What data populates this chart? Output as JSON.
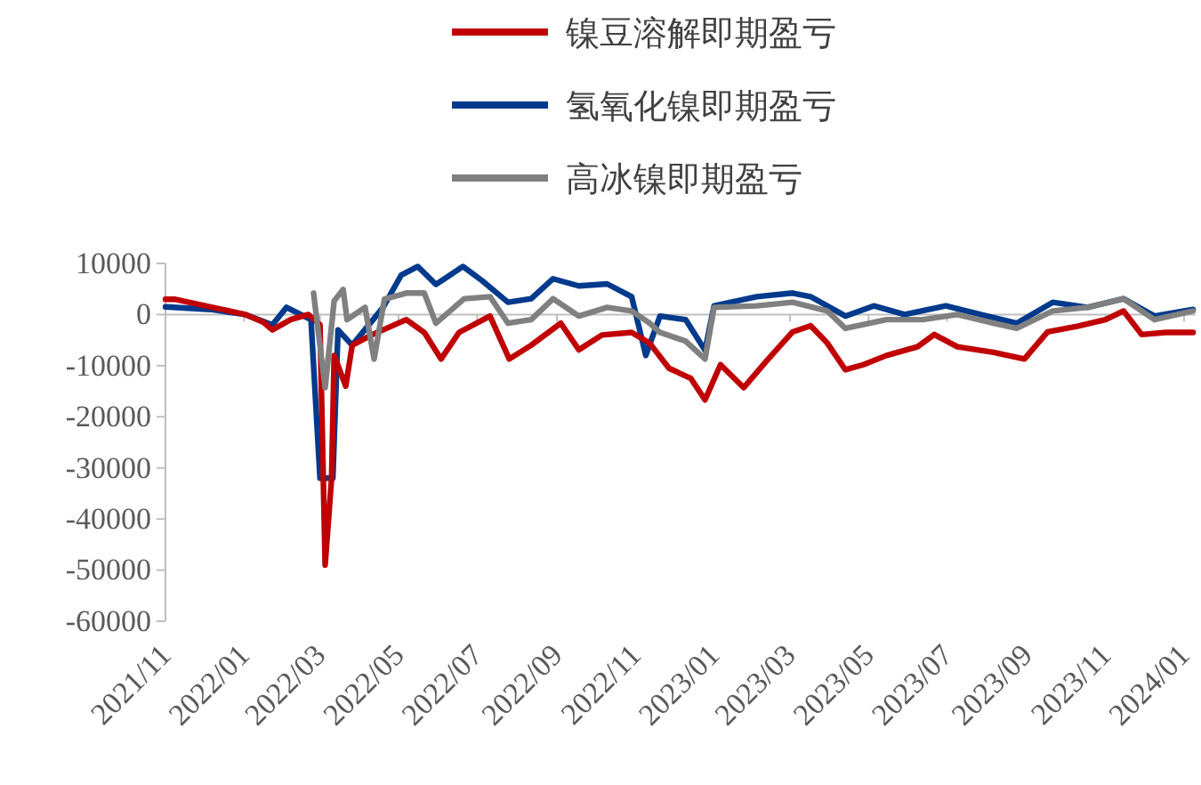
{
  "chart_data": {
    "type": "line",
    "legend": "top",
    "line_style": "solid",
    "marker": "none",
    "xlim": [
      "2021-11-01",
      "2024-01-10"
    ],
    "xticks": [
      {
        "value": "2021-11-01",
        "label": "2021/11"
      },
      {
        "value": "2022-01-01",
        "label": "2022/01"
      },
      {
        "value": "2022-03-01",
        "label": "2022/03"
      },
      {
        "value": "2022-05-01",
        "label": "2022/05"
      },
      {
        "value": "2022-07-01",
        "label": "2022/07"
      },
      {
        "value": "2022-09-01",
        "label": "2022/09"
      },
      {
        "value": "2022-11-01",
        "label": "2022/11"
      },
      {
        "value": "2023-01-01",
        "label": "2023/01"
      },
      {
        "value": "2023-03-01",
        "label": "2023/03"
      },
      {
        "value": "2023-05-01",
        "label": "2023/05"
      },
      {
        "value": "2023-07-01",
        "label": "2023/07"
      },
      {
        "value": "2023-09-01",
        "label": "2023/09"
      },
      {
        "value": "2023-11-01",
        "label": "2023/11"
      },
      {
        "value": "2024-01-01",
        "label": "2024/01"
      }
    ],
    "ylim": [
      -60000,
      10000
    ],
    "yticks": [
      -60000,
      -50000,
      -40000,
      -30000,
      -20000,
      -10000,
      0,
      10000
    ],
    "series": [
      {
        "name": "镍豆溶解即期盈亏",
        "color": "#c00000",
        "x": [
          "2021-11-01",
          "2021-11-08",
          "2021-12-06",
          "2022-01-02",
          "2022-01-16",
          "2022-01-23",
          "2022-02-06",
          "2022-02-20",
          "2022-03-01",
          "2022-03-05",
          "2022-03-10",
          "2022-03-12",
          "2022-03-21",
          "2022-03-26",
          "2022-04-10",
          "2022-05-07",
          "2022-05-21",
          "2022-06-03",
          "2022-06-17",
          "2022-07-11",
          "2022-07-26",
          "2022-08-12",
          "2022-09-04",
          "2022-09-18",
          "2022-10-06",
          "2022-10-29",
          "2022-11-12",
          "2022-11-27",
          "2022-12-14",
          "2022-12-25",
          "2023-01-06",
          "2023-01-24",
          "2023-02-11",
          "2023-03-03",
          "2023-03-17",
          "2023-03-30",
          "2023-04-13",
          "2023-04-27",
          "2023-05-15",
          "2023-06-08",
          "2023-06-21",
          "2023-07-09",
          "2023-08-06",
          "2023-08-30",
          "2023-09-17",
          "2023-10-10",
          "2023-11-01",
          "2023-11-15",
          "2023-11-29",
          "2023-12-18",
          "2024-01-08"
        ],
        "values": [
          3000,
          3000,
          1500,
          0,
          -1500,
          -3000,
          -1000,
          0,
          -2000,
          -49000,
          -32000,
          -8000,
          -14000,
          -6000,
          -4000,
          -1000,
          -3500,
          -8700,
          -3500,
          -300,
          -8700,
          -6000,
          -1700,
          -6900,
          -4000,
          -3500,
          -5600,
          -10500,
          -12500,
          -16700,
          -9800,
          -14300,
          -9000,
          -3400,
          -2200,
          -5600,
          -10800,
          -9800,
          -8000,
          -6300,
          -3900,
          -6300,
          -7400,
          -8700,
          -3400,
          -2300,
          -1000,
          700,
          -3900,
          -3500,
          -3500
        ]
      },
      {
        "name": "氢氧化镍即期盈亏",
        "color": "#003a8c",
        "x": [
          "2021-11-01",
          "2021-12-06",
          "2022-01-02",
          "2022-01-23",
          "2022-02-03",
          "2022-02-22",
          "2022-03-01",
          "2022-03-11",
          "2022-03-15",
          "2022-03-26",
          "2022-04-19",
          "2022-05-03",
          "2022-05-16",
          "2022-05-30",
          "2022-06-20",
          "2022-07-05",
          "2022-07-25",
          "2022-08-12",
          "2022-08-29",
          "2022-09-18",
          "2022-10-10",
          "2022-10-29",
          "2022-11-09",
          "2022-11-20",
          "2022-12-10",
          "2022-12-25",
          "2023-01-01",
          "2023-02-03",
          "2023-03-03",
          "2023-03-17",
          "2023-04-13",
          "2023-05-05",
          "2023-05-29",
          "2023-06-30",
          "2023-07-27",
          "2023-08-24",
          "2023-09-21",
          "2023-10-18",
          "2023-11-15",
          "2023-12-09",
          "2024-01-08"
        ],
        "values": [
          1500,
          1000,
          0,
          -2000,
          1400,
          -1000,
          -32000,
          -32000,
          -3000,
          -6000,
          1400,
          7700,
          9400,
          5900,
          9400,
          6600,
          2400,
          3100,
          7000,
          5600,
          6000,
          3500,
          -8000,
          -300,
          -1000,
          -7000,
          1700,
          3500,
          4200,
          3500,
          -300,
          1700,
          0,
          1700,
          0,
          -1700,
          2400,
          1400,
          3100,
          -300,
          1000
        ]
      },
      {
        "name": "高冰镍即期盈亏",
        "color": "#808080",
        "x": [
          "2022-02-24",
          "2022-03-05",
          "2022-03-12",
          "2022-03-19",
          "2022-03-22",
          "2022-04-05",
          "2022-04-12",
          "2022-04-20",
          "2022-05-07",
          "2022-05-21",
          "2022-05-30",
          "2022-06-21",
          "2022-07-11",
          "2022-07-25",
          "2022-08-12",
          "2022-08-29",
          "2022-09-18",
          "2022-10-10",
          "2022-10-29",
          "2022-11-12",
          "2022-11-20",
          "2022-12-10",
          "2022-12-25",
          "2023-01-01",
          "2023-02-03",
          "2023-03-03",
          "2023-03-30",
          "2023-04-13",
          "2023-05-15",
          "2023-06-12",
          "2023-07-09",
          "2023-08-06",
          "2023-08-24",
          "2023-09-21",
          "2023-10-18",
          "2023-11-15",
          "2023-12-09",
          "2024-01-08"
        ],
        "values": [
          4200,
          -14300,
          2700,
          4900,
          -1000,
          1400,
          -8700,
          3000,
          4200,
          4200,
          -1700,
          3100,
          3500,
          -1700,
          -1000,
          3100,
          -300,
          1400,
          700,
          -1700,
          -3500,
          -5200,
          -8700,
          1400,
          1700,
          2400,
          700,
          -2700,
          -1000,
          -1000,
          0,
          -1700,
          -2700,
          700,
          1400,
          3100,
          -1000,
          700
        ]
      }
    ]
  }
}
